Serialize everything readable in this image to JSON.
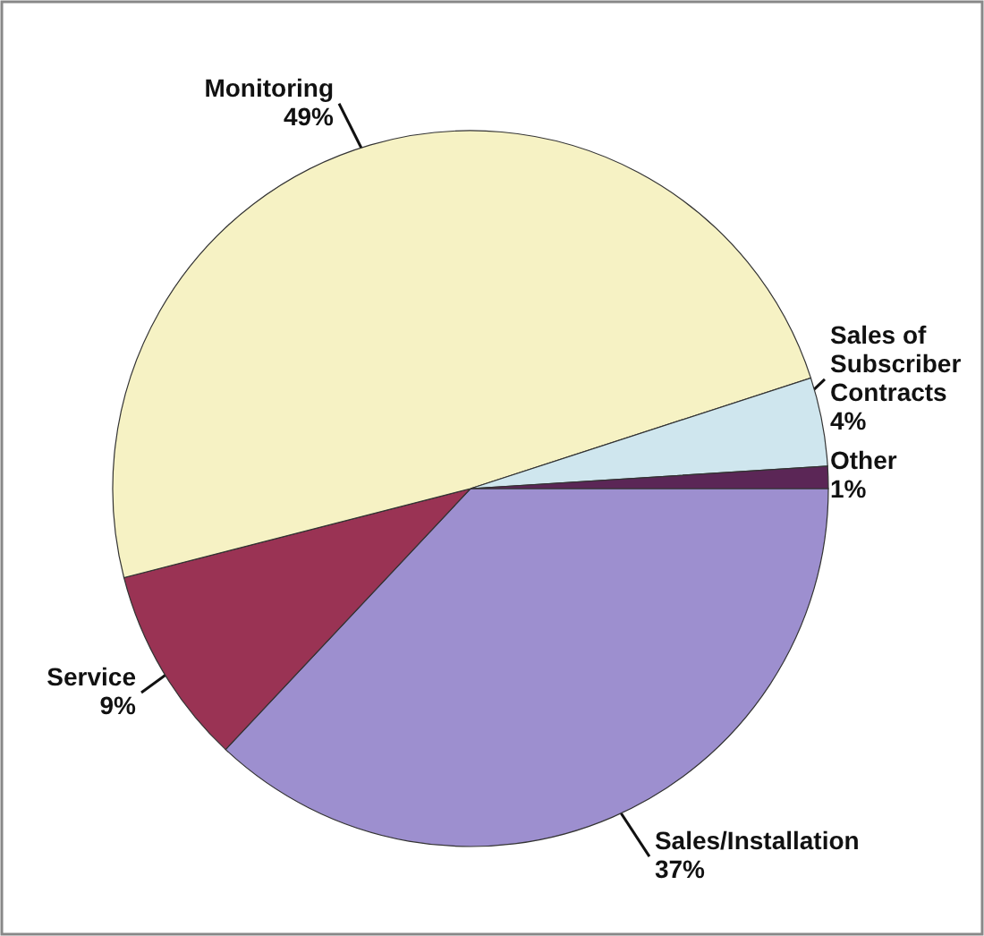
{
  "chart_data": {
    "type": "pie",
    "categories": [
      "Sales/Installation",
      "Service",
      "Monitoring",
      "Sales of Subscriber Contracts",
      "Other"
    ],
    "values": [
      37,
      9,
      49,
      4,
      1
    ],
    "value_labels": [
      "37%",
      "9%",
      "49%",
      "4%",
      "1%"
    ],
    "colors": [
      "#9d8fcf",
      "#9a3354",
      "#f6f2c4",
      "#cfe6ee",
      "#5b2656"
    ]
  }
}
